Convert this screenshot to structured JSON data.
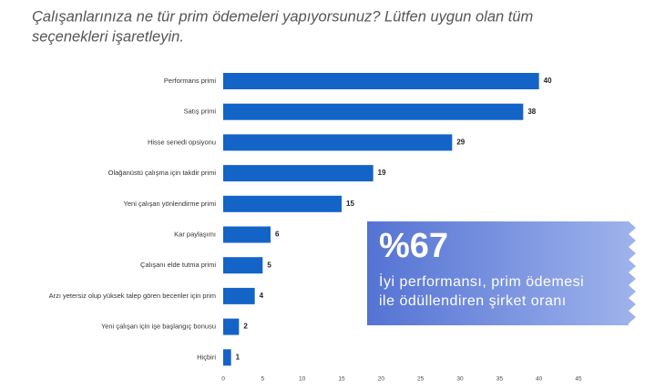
{
  "chart_data": {
    "type": "bar",
    "orientation": "horizontal",
    "title": [
      "Çalışanlarınıza ne tür prim ödemeleri yapıyorsunuz? Lütfen uygun olan tüm",
      "seçenekleri işaretleyin."
    ],
    "categories": [
      "Performans primi",
      "Satış primi",
      "Hisse senedi opsiyonu",
      "Olağanüstü çalışma için takdir primi",
      "Yeni çalışan yönlendirme primi",
      "Kar paylaşımı",
      "Çalışanı elde tutma primi",
      "Arzı yetersiz olup yüksek talep gören beceriler için prim",
      "Yeni çalışan için işe başlangıç bonusu",
      "Hiçbiri"
    ],
    "values": [
      40,
      38,
      29,
      19,
      15,
      6,
      5,
      4,
      2,
      1
    ],
    "color": "#1464c8",
    "xlim": [
      0,
      45
    ],
    "xticks": [
      0,
      5,
      10,
      15,
      20,
      25,
      30,
      35,
      40,
      45
    ],
    "callout": {
      "value": "%67",
      "lines": [
        "İyi performansı, prim ödemesi",
        "ile ödüllendiren şirket oranı"
      ]
    }
  }
}
